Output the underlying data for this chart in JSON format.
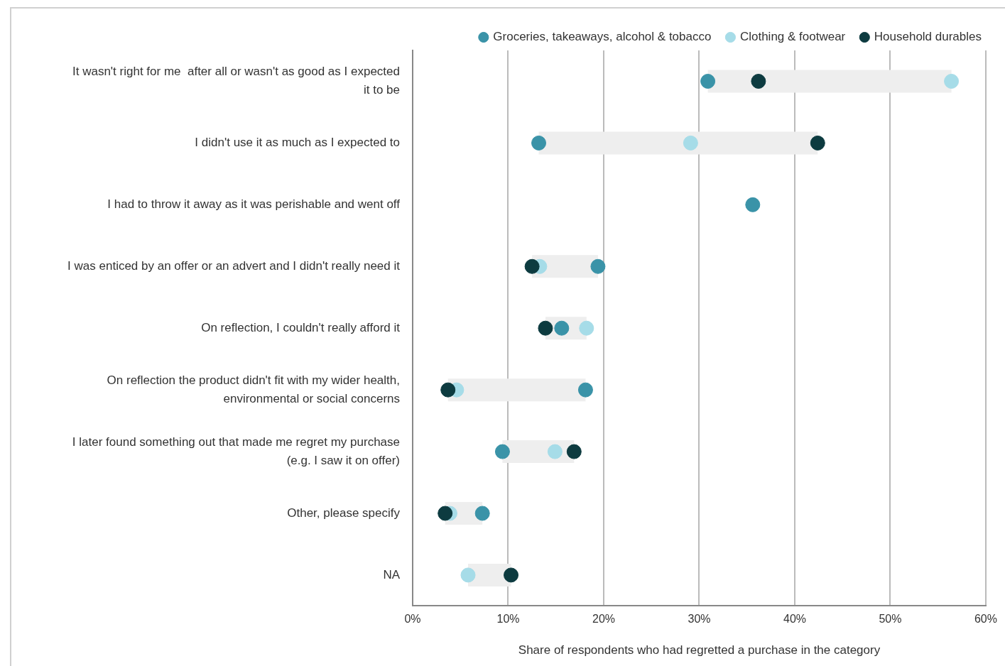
{
  "chart_data": {
    "type": "scatter",
    "orientation": "horizontal",
    "xlabel": "Share of respondents who had regretted a purchase in the category",
    "categories": [
      "It wasn't right for me  after all or wasn't as good as I expected it to be",
      "I didn't use it as much as I expected to",
      "I had to throw it away as it was perishable and went off",
      "I was enticed by an offer or an advert and I didn't really need it",
      "On reflection, I couldn't really afford it",
      "On reflection the product didn't fit with my wider health, environmental or social concerns",
      "I later found something out that made me regret my purchase (e.g. I saw it on offer)",
      "Other, please specify",
      "NA"
    ],
    "series": [
      {
        "type": "bar",
        "color": "#eeeeee",
        "base": [
          30.9,
          13.2,
          null,
          12.5,
          13.9,
          3.7,
          9.4,
          3.4,
          5.8
        ],
        "values": [
          25.5,
          29.2,
          null,
          6.9,
          4.3,
          14.4,
          7.5,
          3.9,
          4.5
        ]
      },
      {
        "name": "Groceries, takeaways, alcohol & tobacco",
        "color": "#3a93a8",
        "values": [
          30.9,
          13.2,
          35.6,
          19.4,
          15.6,
          18.1,
          9.4,
          7.3,
          null
        ]
      },
      {
        "name": "Clothing & footwear",
        "color": "#a6dce8",
        "values": [
          56.4,
          29.1,
          null,
          13.3,
          18.2,
          4.6,
          14.9,
          3.9,
          5.8
        ]
      },
      {
        "name": "Household durables",
        "color": "#0d3b40",
        "values": [
          36.2,
          42.4,
          null,
          12.5,
          13.9,
          3.7,
          16.9,
          3.4,
          10.3
        ]
      }
    ],
    "xlim": [
      0,
      60
    ],
    "xticks": [
      {
        "value": 0,
        "label": "0%"
      },
      {
        "value": 10,
        "label": "10%"
      },
      {
        "value": 20,
        "label": "20%"
      },
      {
        "value": 30,
        "label": "30%"
      },
      {
        "value": 40,
        "label": "40%"
      },
      {
        "value": 50,
        "label": "50%"
      },
      {
        "value": 60,
        "label": "60%"
      }
    ],
    "grid": "x",
    "legend": "top right",
    "marker": "circle"
  }
}
